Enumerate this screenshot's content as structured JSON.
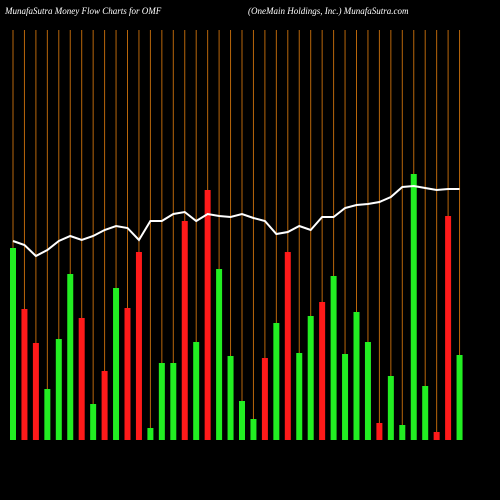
{
  "chart_data": {
    "type": "bar",
    "title": "MunafaSutra  Money Flow  Charts for OMF",
    "subtitle": "(OneMain  Holdings,  Inc.) MunafaSutra.com",
    "categories": [
      null,
      null,
      null,
      null,
      null,
      null,
      null,
      null,
      null,
      null,
      null,
      null,
      null,
      null,
      null,
      null,
      null,
      null,
      null,
      null,
      null,
      null,
      null,
      null,
      null,
      null,
      null,
      null,
      null,
      null,
      null,
      null,
      null,
      null,
      null,
      null,
      null,
      null,
      null,
      null
    ],
    "ylim": [
      0,
      100
    ],
    "series": [
      {
        "type": "bar",
        "values": [
          48,
          32.75,
          24.25,
          12.75,
          25.25,
          41.5,
          30.5,
          9,
          17.25,
          38,
          33,
          47,
          3,
          19.25,
          19.25,
          54.75,
          24.5,
          62.5,
          42.75,
          21,
          9.75,
          5.25,
          20.5,
          29.25,
          47,
          21.75,
          31,
          34.5,
          41,
          21.5,
          32,
          24.5,
          4.25,
          16,
          3.75,
          66.5,
          13.5,
          2,
          56,
          21.25
        ],
        "colors": [
          "#22ee22",
          "#ff1a1a",
          "#ff1a1a",
          "#22ee22",
          "#22ee22",
          "#22ee22",
          "#ff1a1a",
          "#22ee22",
          "#ff1a1a",
          "#22ee22",
          "#ff1a1a",
          "#ff1a1a",
          "#22ee22",
          "#22ee22",
          "#22ee22",
          "#ff1a1a",
          "#22ee22",
          "#ff1a1a",
          "#22ee22",
          "#22ee22",
          "#22ee22",
          "#22ee22",
          "#ff1a1a",
          "#22ee22",
          "#ff1a1a",
          "#22ee22",
          "#22ee22",
          "#ff1a1a",
          "#22ee22",
          "#22ee22",
          "#22ee22",
          "#22ee22",
          "#ff1a1a",
          "#22ee22",
          "#22ee22",
          "#22ee22",
          "#22ee22",
          "#ff1a1a",
          "#ff1a1a",
          "#22ee22"
        ]
      },
      {
        "type": "line",
        "color": "#ffffff",
        "values": [
          49.75,
          48.75,
          46,
          47.5,
          49.75,
          51,
          50,
          51,
          52.5,
          53.5,
          53,
          50,
          54.75,
          54.75,
          56.5,
          57,
          54.75,
          56.5,
          56,
          55.75,
          56.5,
          55.5,
          54.75,
          51.5,
          52,
          53.5,
          52.5,
          55.75,
          55.75,
          58,
          58.75,
          59,
          59.5,
          60.75,
          63.25,
          63.5,
          63,
          62.5,
          62.75,
          62.75
        ]
      }
    ],
    "vline_color": "#b8660b"
  }
}
